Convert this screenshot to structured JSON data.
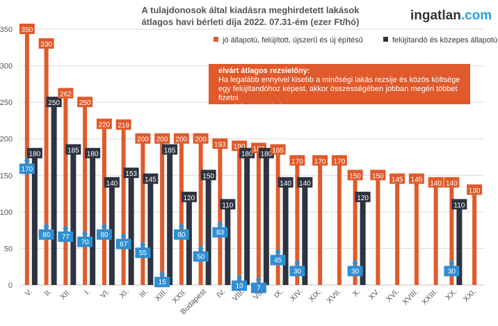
{
  "title": [
    "A tulajdonosok által kiadásra meghirdetett lakások",
    "átlagos havi bérleti díja 2022. 07.31-ém (ezer Ft/hó)"
  ],
  "logo": {
    "part1": "ingatlan",
    "part2": ".com"
  },
  "legend": {
    "series1": "jó állapotú, felújított, újszerű és új építésű",
    "series2": "felújítandó és közepes állapotú"
  },
  "note": {
    "title": "elvárt átlagos rezsielőny:",
    "line1": "Ha legalább ennyivel kisebb a minőségi lakás rezsije és közös költsége",
    "line2": "egy felújítandóhoz képest, akkor összességében jobban megéri többet fizetni",
    "line3": "a minőségi lakásért"
  },
  "colors": {
    "series1": "#e05a2b",
    "series2": "#2d3340",
    "diff": "#2e8fd3",
    "grid": "#d9d9d9",
    "axis_text": "#555555"
  },
  "chart_data": {
    "type": "bar",
    "ylim": [
      0,
      350
    ],
    "yticks": [
      0,
      50,
      100,
      150,
      200,
      250,
      300,
      350
    ],
    "grid": true,
    "legend_position": "top-right",
    "categories": [
      "V.",
      "II.",
      "XII.",
      "I.",
      "VI.",
      "XI.",
      "III.",
      "XIII.",
      "XXII.",
      "Budapest",
      "IV.",
      "VIII.",
      "VII.",
      "IX.",
      "XIV.",
      "XIX.",
      "XVII.",
      "X.",
      "XV.",
      "XVI.",
      "XVIII.",
      "XXIII.",
      "XX.",
      "XXI."
    ],
    "series": [
      {
        "name": "jó állapotú, felújított, újszerű és új építésű",
        "values": [
          350,
          330,
          262,
          250,
          220,
          219,
          200,
          200,
          200,
          200,
          193,
          190,
          187,
          185,
          170,
          170,
          170,
          150,
          150,
          145,
          145,
          140,
          140,
          130
        ]
      },
      {
        "name": "felújítandó és közepes állapotú",
        "values": [
          180,
          250,
          185,
          180,
          140,
          153,
          145,
          185,
          120,
          150,
          110,
          180,
          180,
          140,
          140,
          null,
          null,
          120,
          null,
          null,
          null,
          null,
          110,
          null
        ]
      }
    ],
    "rent_advantage": [
      170,
      80,
      77,
      70,
      80,
      67,
      55,
      15,
      80,
      50,
      83,
      10,
      7,
      45,
      30,
      null,
      null,
      30,
      null,
      null,
      null,
      null,
      30,
      null
    ]
  }
}
